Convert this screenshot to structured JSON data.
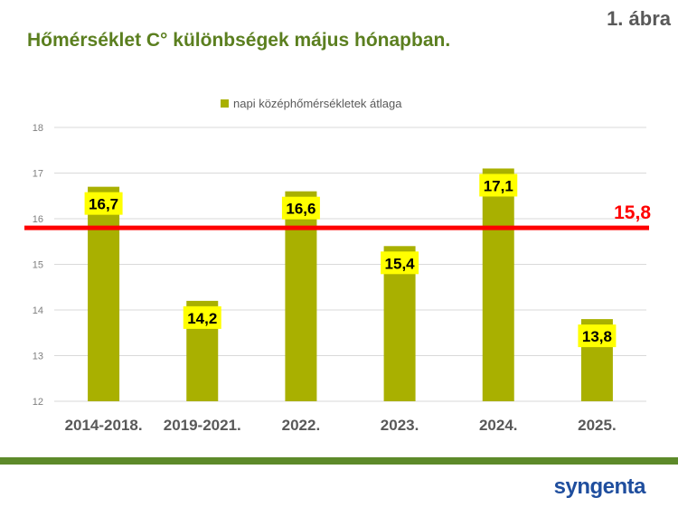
{
  "figure_label": "1. ábra",
  "title": "Hőmérséklet C° különbségek május hónapban.",
  "brand": "syngenta",
  "colors": {
    "bar": "#a9b000",
    "label_bg": "#ffff00",
    "reference_line": "#ff0000",
    "title": "#5b7f1f",
    "footer_band": "#5d8a2a",
    "logo": "#1f4e9e"
  },
  "chart_data": {
    "type": "bar",
    "categories": [
      "2014-2018.",
      "2019-2021.",
      "2022.",
      "2023.",
      "2024.",
      "2025."
    ],
    "series": [
      {
        "name": "napi középhőmérsékletek átlaga",
        "values": [
          16.7,
          14.2,
          16.6,
          15.4,
          17.1,
          13.8
        ],
        "labels": [
          "16,7",
          "14,2",
          "16,6",
          "15,4",
          "17,1",
          "13,8"
        ]
      }
    ],
    "reference_line": {
      "value": 15.8,
      "label": "15,8"
    },
    "ylim": [
      12,
      18
    ],
    "yticks": [
      12,
      13,
      14,
      15,
      16,
      17,
      18
    ],
    "ytick_labels": [
      "12",
      "13",
      "14",
      "15",
      "16",
      "17",
      "18"
    ],
    "xlabel": "",
    "ylabel": "",
    "grid": true,
    "legend_position": "top"
  }
}
